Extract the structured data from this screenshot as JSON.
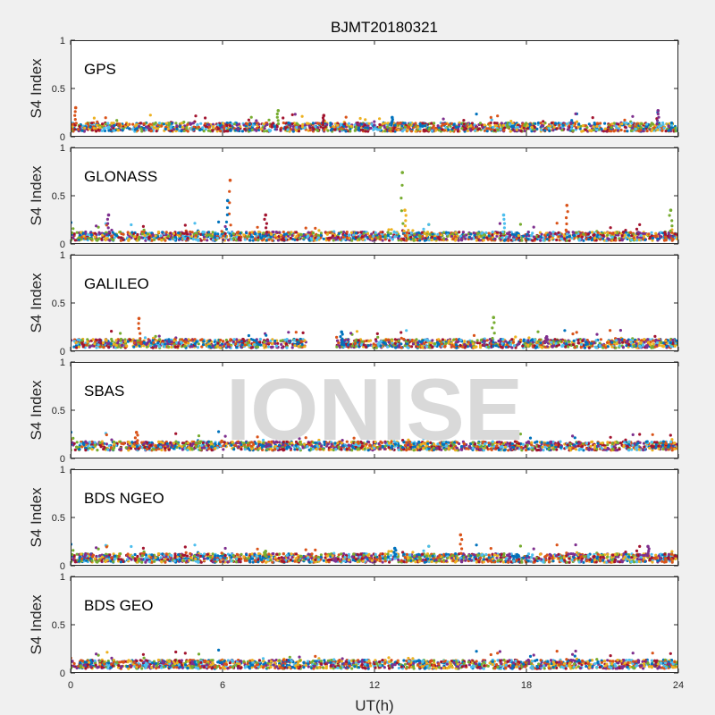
{
  "chart_data": {
    "type": "scatter",
    "title": "BJMT20180321",
    "watermark": "IONISE",
    "xlabel": "UT(h)",
    "xlim": [
      0,
      24
    ],
    "xticks": [
      0,
      6,
      12,
      18,
      24
    ],
    "xtick_labels": [
      "0",
      "6",
      "12",
      "18",
      "24"
    ],
    "grid": false,
    "palette": [
      "#0072BD",
      "#D95319",
      "#EDB120",
      "#7E2F8E",
      "#77AC30",
      "#4DBEEE",
      "#A2142F"
    ],
    "panels": [
      {
        "label": "GPS",
        "ylabel": "S4 Index",
        "ylim": [
          0,
          1
        ],
        "yticks": [
          0,
          0.5,
          1
        ],
        "ytick_labels": [
          "0",
          "0.5",
          "1"
        ],
        "typical_s4": 0.1,
        "coverage": [
          [
            0,
            24
          ]
        ],
        "spikes": [
          [
            0.2,
            0.3
          ],
          [
            8.2,
            0.27
          ],
          [
            12.7,
            0.2
          ],
          [
            23.2,
            0.27
          ],
          [
            10.0,
            0.22
          ]
        ]
      },
      {
        "label": "GLONASS",
        "ylabel": "S4 Index",
        "ylim": [
          0,
          1
        ],
        "yticks": [
          0,
          0.5,
          1
        ],
        "ytick_labels": [
          "0",
          "0.5",
          "1"
        ],
        "typical_s4": 0.08,
        "coverage": [
          [
            0,
            24
          ]
        ],
        "spikes": [
          [
            6.3,
            0.66
          ],
          [
            13.1,
            0.74
          ],
          [
            6.2,
            0.45
          ],
          [
            1.5,
            0.3
          ],
          [
            7.7,
            0.3
          ],
          [
            13.2,
            0.35
          ],
          [
            17.1,
            0.3
          ],
          [
            19.6,
            0.4
          ],
          [
            23.7,
            0.35
          ]
        ]
      },
      {
        "label": "GALILEO",
        "ylabel": "S4 Index",
        "ylim": [
          0,
          1
        ],
        "yticks": [
          0,
          0.5,
          1
        ],
        "ytick_labels": [
          "0",
          "0.5",
          "1"
        ],
        "typical_s4": 0.08,
        "coverage": [
          [
            0,
            9.3
          ],
          [
            10.5,
            24
          ]
        ],
        "spikes": [
          [
            2.7,
            0.34
          ],
          [
            16.7,
            0.35
          ],
          [
            10.7,
            0.2
          ],
          [
            18.8,
            0.15
          ]
        ]
      },
      {
        "label": "SBAS",
        "ylabel": "S4 Index",
        "ylim": [
          0,
          1
        ],
        "yticks": [
          0,
          0.5,
          1
        ],
        "ytick_labels": [
          "0",
          "0.5",
          "1"
        ],
        "typical_s4": 0.13,
        "coverage": [
          [
            0,
            24
          ]
        ],
        "spikes": [
          [
            2.6,
            0.27
          ]
        ]
      },
      {
        "label": "BDS NGEO",
        "ylabel": "S4 Index",
        "ylim": [
          0,
          1
        ],
        "yticks": [
          0,
          0.5,
          1
        ],
        "ytick_labels": [
          "0",
          "0.5",
          "1"
        ],
        "typical_s4": 0.08,
        "coverage": [
          [
            0,
            24
          ]
        ],
        "spikes": [
          [
            15.4,
            0.32
          ],
          [
            7.7,
            0.15
          ],
          [
            12.8,
            0.18
          ],
          [
            22.8,
            0.2
          ]
        ]
      },
      {
        "label": "BDS GEO",
        "ylabel": "S4 Index",
        "ylim": [
          0,
          1
        ],
        "yticks": [
          0,
          0.5,
          1
        ],
        "ytick_labels": [
          "0",
          "0.5",
          "1"
        ],
        "typical_s4": 0.09,
        "coverage": [
          [
            0,
            24
          ]
        ],
        "spikes": []
      }
    ]
  }
}
